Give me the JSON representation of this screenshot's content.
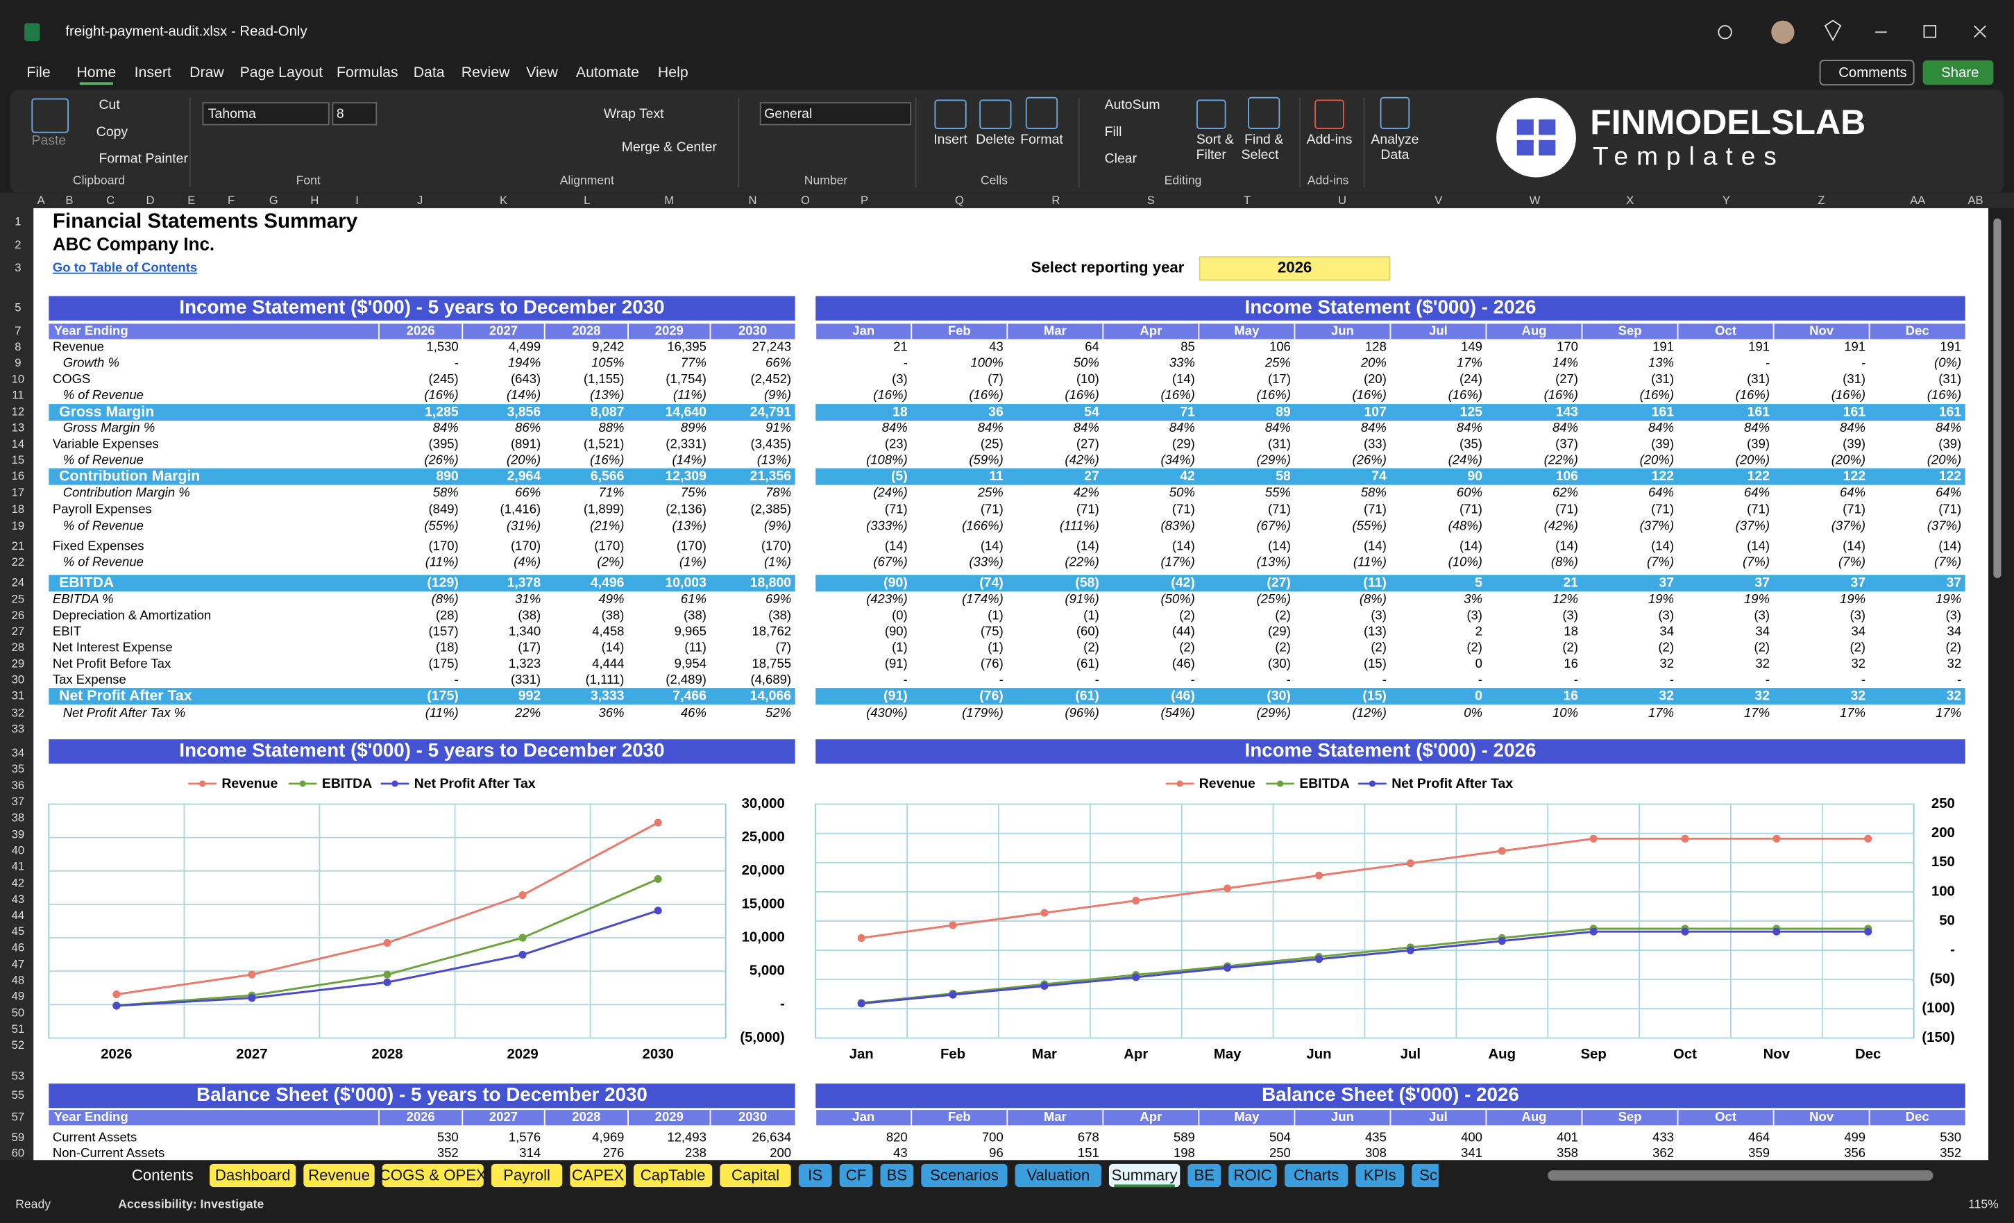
{
  "window": {
    "title": "freight-payment-audit.xlsx  -  Read-Only"
  },
  "menu": [
    "File",
    "Home",
    "Insert",
    "Draw",
    "Page Layout",
    "Formulas",
    "Data",
    "Review",
    "View",
    "Automate",
    "Help"
  ],
  "buttons": {
    "comments": "Comments",
    "share": "Share"
  },
  "ribbon": {
    "items": [
      "Paste",
      "Cut",
      "Copy",
      "Format Painter",
      "Tahoma",
      "8",
      "Wrap Text",
      "Merge & Center",
      "General",
      "Insert",
      "Delete",
      "Format",
      "AutoSum",
      "Fill",
      "Clear",
      "Sort &",
      "Filter",
      "Find &",
      "Select",
      "Add-ins",
      "Analyze",
      "Data"
    ],
    "groups": [
      "Clipboard",
      "Font",
      "Alignment",
      "Number",
      "Cells",
      "Editing",
      "Add-ins"
    ]
  },
  "logo": {
    "name": "FINMODELSLAB",
    "tagline": "Templates"
  },
  "column_headers": [
    "A",
    "B",
    "C",
    "D",
    "E",
    "F",
    "G",
    "H",
    "I",
    "J",
    "K",
    "L",
    "M",
    "N",
    "O",
    "P",
    "Q",
    "R",
    "S",
    "T",
    "U",
    "V",
    "W",
    "X",
    "Y",
    "Z",
    "AA",
    "AB"
  ],
  "row_numbers": [
    "1",
    "2",
    "3",
    "5",
    "7",
    "8",
    "9",
    "10",
    "11",
    "12",
    "13",
    "14",
    "15",
    "16",
    "17",
    "18",
    "19",
    "21",
    "22",
    "24",
    "25",
    "26",
    "27",
    "28",
    "29",
    "30",
    "31",
    "32",
    "33",
    "34",
    "35",
    "36",
    "37",
    "38",
    "39",
    "40",
    "41",
    "42",
    "43",
    "44",
    "45",
    "46",
    "47",
    "48",
    "49",
    "50",
    "51",
    "52",
    "53",
    "55",
    "57",
    "59",
    "60"
  ],
  "sheet": {
    "title": "Financial Statements Summary",
    "company": "ABC Company Inc.",
    "link": "Go to Table of Contents",
    "year_label": "Select reporting year",
    "year": "2026"
  },
  "income_annual": {
    "title": "Income Statement ($'000) - 5 years to December 2030",
    "header": "Year Ending",
    "columns": [
      "2026",
      "2027",
      "2028",
      "2029",
      "2030"
    ],
    "rows": [
      {
        "label": "Revenue",
        "values": [
          "1,530",
          "4,499",
          "9,242",
          "16,395",
          "27,243"
        ]
      },
      {
        "label": "Growth %",
        "values": [
          "-",
          "194%",
          "105%",
          "77%",
          "66%"
        ]
      },
      {
        "label": "COGS",
        "values": [
          "(245)",
          "(643)",
          "(1,155)",
          "(1,754)",
          "(2,452)"
        ]
      },
      {
        "label": "% of Revenue",
        "values": [
          "(16%)",
          "(14%)",
          "(13%)",
          "(11%)",
          "(9%)"
        ]
      },
      {
        "label": "Gross Margin",
        "values": [
          "1,285",
          "3,856",
          "8,087",
          "14,640",
          "24,791"
        ]
      },
      {
        "label": "Gross Margin %",
        "values": [
          "84%",
          "86%",
          "88%",
          "89%",
          "91%"
        ]
      },
      {
        "label": "Variable Expenses",
        "values": [
          "(395)",
          "(891)",
          "(1,521)",
          "(2,331)",
          "(3,435)"
        ]
      },
      {
        "label": "% of Revenue",
        "values": [
          "(26%)",
          "(20%)",
          "(16%)",
          "(14%)",
          "(13%)"
        ]
      },
      {
        "label": "Contribution Margin",
        "values": [
          "890",
          "2,964",
          "6,566",
          "12,309",
          "21,356"
        ]
      },
      {
        "label": "Contribution Margin %",
        "values": [
          "58%",
          "66%",
          "71%",
          "75%",
          "78%"
        ]
      },
      {
        "label": "Payroll Expenses",
        "values": [
          "(849)",
          "(1,416)",
          "(1,899)",
          "(2,136)",
          "(2,385)"
        ]
      },
      {
        "label": "% of Revenue",
        "values": [
          "(55%)",
          "(31%)",
          "(21%)",
          "(13%)",
          "(9%)"
        ]
      },
      {
        "label": "Fixed Expenses",
        "values": [
          "(170)",
          "(170)",
          "(170)",
          "(170)",
          "(170)"
        ]
      },
      {
        "label": "% of Revenue",
        "values": [
          "(11%)",
          "(4%)",
          "(2%)",
          "(1%)",
          "(1%)"
        ]
      },
      {
        "label": "EBITDA",
        "values": [
          "(129)",
          "1,378",
          "4,496",
          "10,003",
          "18,800"
        ]
      },
      {
        "label": "EBITDA %",
        "values": [
          "(8%)",
          "31%",
          "49%",
          "61%",
          "69%"
        ]
      },
      {
        "label": "Depreciation & Amortization",
        "values": [
          "(28)",
          "(38)",
          "(38)",
          "(38)",
          "(38)"
        ]
      },
      {
        "label": "EBIT",
        "values": [
          "(157)",
          "1,340",
          "4,458",
          "9,965",
          "18,762"
        ]
      },
      {
        "label": "Net Interest Expense",
        "values": [
          "(18)",
          "(17)",
          "(14)",
          "(11)",
          "(7)"
        ]
      },
      {
        "label": "Net Profit Before Tax",
        "values": [
          "(175)",
          "1,323",
          "4,444",
          "9,954",
          "18,755"
        ]
      },
      {
        "label": "Tax Expense",
        "values": [
          "-",
          "(331)",
          "(1,111)",
          "(2,489)",
          "(4,689)"
        ]
      },
      {
        "label": "Net Profit After Tax",
        "values": [
          "(175)",
          "992",
          "3,333",
          "7,466",
          "14,066"
        ]
      },
      {
        "label": "Net Profit After Tax %",
        "values": [
          "(11%)",
          "22%",
          "36%",
          "46%",
          "52%"
        ]
      }
    ]
  },
  "income_monthly": {
    "title": "Income Statement ($'000) - 2026",
    "columns": [
      "Jan",
      "Feb",
      "Mar",
      "Apr",
      "May",
      "Jun",
      "Jul",
      "Aug",
      "Sep",
      "Oct",
      "Nov",
      "Dec"
    ],
    "rows": [
      [
        "21",
        "43",
        "64",
        "85",
        "106",
        "128",
        "149",
        "170",
        "191",
        "191",
        "191",
        "191"
      ],
      [
        "-",
        "100%",
        "50%",
        "33%",
        "25%",
        "20%",
        "17%",
        "14%",
        "13%",
        "-",
        "-",
        "(0%)"
      ],
      [
        "(3)",
        "(7)",
        "(10)",
        "(14)",
        "(17)",
        "(20)",
        "(24)",
        "(27)",
        "(31)",
        "(31)",
        "(31)",
        "(31)"
      ],
      [
        "(16%)",
        "(16%)",
        "(16%)",
        "(16%)",
        "(16%)",
        "(16%)",
        "(16%)",
        "(16%)",
        "(16%)",
        "(16%)",
        "(16%)",
        "(16%)"
      ],
      [
        "18",
        "36",
        "54",
        "71",
        "89",
        "107",
        "125",
        "143",
        "161",
        "161",
        "161",
        "161"
      ],
      [
        "84%",
        "84%",
        "84%",
        "84%",
        "84%",
        "84%",
        "84%",
        "84%",
        "84%",
        "84%",
        "84%",
        "84%"
      ],
      [
        "(23)",
        "(25)",
        "(27)",
        "(29)",
        "(31)",
        "(33)",
        "(35)",
        "(37)",
        "(39)",
        "(39)",
        "(39)",
        "(39)"
      ],
      [
        "(108%)",
        "(59%)",
        "(42%)",
        "(34%)",
        "(29%)",
        "(26%)",
        "(24%)",
        "(22%)",
        "(20%)",
        "(20%)",
        "(20%)",
        "(20%)"
      ],
      [
        "(5)",
        "11",
        "27",
        "42",
        "58",
        "74",
        "90",
        "106",
        "122",
        "122",
        "122",
        "122"
      ],
      [
        "(24%)",
        "25%",
        "42%",
        "50%",
        "55%",
        "58%",
        "60%",
        "62%",
        "64%",
        "64%",
        "64%",
        "64%"
      ],
      [
        "(71)",
        "(71)",
        "(71)",
        "(71)",
        "(71)",
        "(71)",
        "(71)",
        "(71)",
        "(71)",
        "(71)",
        "(71)",
        "(71)"
      ],
      [
        "(333%)",
        "(166%)",
        "(111%)",
        "(83%)",
        "(67%)",
        "(55%)",
        "(48%)",
        "(42%)",
        "(37%)",
        "(37%)",
        "(37%)",
        "(37%)"
      ],
      [
        "(14)",
        "(14)",
        "(14)",
        "(14)",
        "(14)",
        "(14)",
        "(14)",
        "(14)",
        "(14)",
        "(14)",
        "(14)",
        "(14)"
      ],
      [
        "(67%)",
        "(33%)",
        "(22%)",
        "(17%)",
        "(13%)",
        "(11%)",
        "(10%)",
        "(8%)",
        "(7%)",
        "(7%)",
        "(7%)",
        "(7%)"
      ],
      [
        "(90)",
        "(74)",
        "(58)",
        "(42)",
        "(27)",
        "(11)",
        "5",
        "21",
        "37",
        "37",
        "37",
        "37"
      ],
      [
        "(423%)",
        "(174%)",
        "(91%)",
        "(50%)",
        "(25%)",
        "(8%)",
        "3%",
        "12%",
        "19%",
        "19%",
        "19%",
        "19%"
      ],
      [
        "(0)",
        "(1)",
        "(1)",
        "(2)",
        "(2)",
        "(3)",
        "(3)",
        "(3)",
        "(3)",
        "(3)",
        "(3)",
        "(3)"
      ],
      [
        "(90)",
        "(75)",
        "(60)",
        "(44)",
        "(29)",
        "(13)",
        "2",
        "18",
        "34",
        "34",
        "34",
        "34"
      ],
      [
        "(1)",
        "(1)",
        "(2)",
        "(2)",
        "(2)",
        "(2)",
        "(2)",
        "(2)",
        "(2)",
        "(2)",
        "(2)",
        "(2)"
      ],
      [
        "(91)",
        "(76)",
        "(61)",
        "(46)",
        "(30)",
        "(15)",
        "0",
        "16",
        "32",
        "32",
        "32",
        "32"
      ],
      [
        "-",
        "-",
        "-",
        "-",
        "-",
        "-",
        "-",
        "-",
        "-",
        "-",
        "-",
        "-"
      ],
      [
        "(91)",
        "(76)",
        "(61)",
        "(46)",
        "(30)",
        "(15)",
        "0",
        "16",
        "32",
        "32",
        "32",
        "32"
      ],
      [
        "(430%)",
        "(179%)",
        "(96%)",
        "(54%)",
        "(29%)",
        "(12%)",
        "0%",
        "10%",
        "17%",
        "17%",
        "17%",
        "17%"
      ]
    ]
  },
  "chart_data": [
    {
      "type": "line",
      "title": "Income Statement ($'000) - 5 years to December 2030",
      "categories": [
        "2026",
        "2027",
        "2028",
        "2029",
        "2030"
      ],
      "series": [
        {
          "name": "Revenue",
          "color": "#e8796b",
          "values": [
            1530,
            4499,
            9242,
            16395,
            27243
          ]
        },
        {
          "name": "EBITDA",
          "color": "#6ea23f",
          "values": [
            -129,
            1378,
            4496,
            10003,
            18800
          ]
        },
        {
          "name": "Net Profit After Tax",
          "color": "#4a4ac8",
          "values": [
            -175,
            992,
            3333,
            7466,
            14066
          ]
        }
      ],
      "ylim": [
        -5000,
        30000
      ],
      "yticks": [
        {
          "value": 30000,
          "label": "30,000"
        },
        {
          "value": 25000,
          "label": "25,000"
        },
        {
          "value": 20000,
          "label": "20,000"
        },
        {
          "value": 15000,
          "label": "15,000"
        },
        {
          "value": 10000,
          "label": "10,000"
        },
        {
          "value": 5000,
          "label": "5,000"
        },
        {
          "value": 0,
          "label": "-"
        },
        {
          "value": -5000,
          "label": "(5,000)"
        }
      ],
      "grid": true
    },
    {
      "type": "line",
      "title": "Income Statement ($'000) - 2026",
      "categories": [
        "Jan",
        "Feb",
        "Mar",
        "Apr",
        "May",
        "Jun",
        "Jul",
        "Aug",
        "Sep",
        "Oct",
        "Nov",
        "Dec"
      ],
      "series": [
        {
          "name": "Revenue",
          "color": "#e8796b",
          "values": [
            21,
            43,
            64,
            85,
            106,
            128,
            149,
            170,
            191,
            191,
            191,
            191
          ]
        },
        {
          "name": "EBITDA",
          "color": "#6ea23f",
          "values": [
            -90,
            -74,
            -58,
            -42,
            -27,
            -11,
            5,
            21,
            37,
            37,
            37,
            37
          ]
        },
        {
          "name": "Net Profit After Tax",
          "color": "#4a4ac8",
          "values": [
            -91,
            -76,
            -61,
            -46,
            -30,
            -15,
            0,
            16,
            32,
            32,
            32,
            32
          ]
        }
      ],
      "ylim": [
        -150,
        250
      ],
      "yticks": [
        250,
        200,
        150,
        100,
        50,
        {
          "value": 0,
          "label": "-"
        },
        {
          "value": -50,
          "label": "(50)"
        },
        {
          "value": -100,
          "label": "(100)"
        },
        {
          "value": -150,
          "label": "(150)"
        }
      ],
      "grid": true
    }
  ],
  "balance_annual": {
    "title": "Balance Sheet ($'000) - 5 years to December 2030",
    "header": "Year Ending",
    "columns": [
      "2026",
      "2027",
      "2028",
      "2029",
      "2030"
    ],
    "rows": [
      {
        "label": "Current Assets",
        "values": [
          "530",
          "1,576",
          "4,969",
          "12,493",
          "26,634"
        ]
      },
      {
        "label": "Non-Current Assets",
        "values": [
          "352",
          "314",
          "276",
          "238",
          "200"
        ]
      }
    ]
  },
  "balance_monthly": {
    "title": "Balance Sheet ($'000) - 2026",
    "columns": [
      "Jan",
      "Feb",
      "Mar",
      "Apr",
      "May",
      "Jun",
      "Jul",
      "Aug",
      "Sep",
      "Oct",
      "Nov",
      "Dec"
    ],
    "rows": [
      [
        "820",
        "700",
        "678",
        "589",
        "504",
        "435",
        "400",
        "401",
        "433",
        "464",
        "499",
        "530"
      ],
      [
        "43",
        "96",
        "151",
        "198",
        "250",
        "308",
        "341",
        "358",
        "362",
        "359",
        "356",
        "352"
      ]
    ]
  },
  "tabs": [
    "Contents",
    "Dashboard",
    "Revenue",
    "COGS & OPEX",
    "Payroll",
    "CAPEX",
    "CapTable",
    "Capital",
    "IS",
    "CF",
    "BS",
    "Scenarios",
    "Valuation",
    "Summary",
    "BE",
    "ROIC",
    "Charts",
    "KPIs",
    "Sc"
  ],
  "status": {
    "ready": "Ready",
    "accessibility": "Accessibility: Investigate",
    "zoom": "115%"
  }
}
